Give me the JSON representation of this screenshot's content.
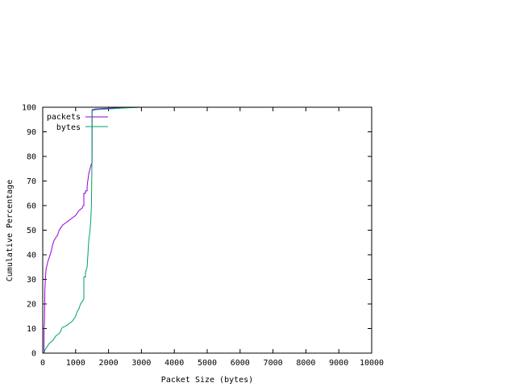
{
  "chart_data": {
    "type": "line",
    "title": "",
    "xlabel": "Packet Size (bytes)",
    "ylabel": "Cumulative Percentage",
    "xlim": [
      0,
      10000
    ],
    "ylim": [
      0,
      100
    ],
    "xticks": [
      0,
      1000,
      2000,
      3000,
      4000,
      5000,
      6000,
      7000,
      8000,
      9000,
      10000
    ],
    "yticks": [
      0,
      10,
      20,
      30,
      40,
      50,
      60,
      70,
      80,
      90,
      100
    ],
    "grid": false,
    "legend_position": "top-left",
    "series": [
      {
        "name": "packets",
        "color": "#9400d3",
        "x": [
          40,
          40,
          52,
          60,
          64,
          80,
          100,
          150,
          200,
          250,
          300,
          350,
          400,
          450,
          500,
          550,
          576,
          600,
          700,
          800,
          900,
          1000,
          1100,
          1200,
          1230,
          1250,
          1250,
          1300,
          1300,
          1350,
          1350,
          1400,
          1420,
          1440,
          1460,
          1480,
          1490,
          1500,
          1500,
          1600,
          2000,
          2500,
          3000
        ],
        "y": [
          0,
          10,
          12,
          20,
          25,
          30,
          34,
          37,
          39,
          41,
          44,
          46,
          47,
          48,
          50,
          51,
          51.5,
          52,
          53,
          54,
          55,
          56,
          58,
          59,
          60,
          60,
          65,
          65,
          66,
          66,
          68,
          73,
          74,
          75,
          76,
          77,
          77,
          77.5,
          99,
          99.3,
          99.6,
          99.9,
          100
        ]
      },
      {
        "name": "bytes",
        "color": "#009e73",
        "x": [
          40,
          60,
          100,
          150,
          200,
          250,
          300,
          350,
          400,
          450,
          500,
          550,
          576,
          600,
          700,
          800,
          900,
          950,
          1000,
          1050,
          1100,
          1150,
          1200,
          1250,
          1250,
          1300,
          1300,
          1350,
          1400,
          1420,
          1440,
          1460,
          1480,
          1490,
          1500,
          1500,
          1600,
          2000,
          2500,
          3000
        ],
        "y": [
          0,
          1,
          2,
          3,
          4,
          4.5,
          5,
          6,
          7,
          7.5,
          8,
          9,
          10,
          10.5,
          11,
          12,
          13,
          14,
          15,
          17,
          18,
          20,
          21,
          22,
          31,
          31,
          33,
          35,
          46,
          48,
          50,
          54,
          60,
          70,
          85,
          98.5,
          99,
          99.3,
          99.7,
          100
        ]
      }
    ]
  }
}
